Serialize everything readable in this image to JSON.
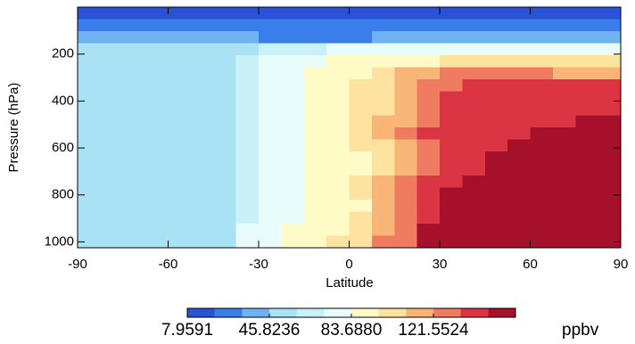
{
  "chart_data": {
    "type": "heatmap",
    "xlabel": "Latitude",
    "ylabel": "Pressure (hPa)",
    "x": [
      -86.25,
      -78.75,
      -71.25,
      -63.75,
      -56.25,
      -48.75,
      -41.25,
      -33.75,
      -26.25,
      -18.75,
      -11.25,
      -3.75,
      3.75,
      11.25,
      18.75,
      26.25,
      33.75,
      41.25,
      48.75,
      56.25,
      63.75,
      71.25,
      78.75,
      86.25
    ],
    "y": [
      25.625,
      76.875,
      128.125,
      179.375,
      230.625,
      281.875,
      333.125,
      384.375,
      435.625,
      486.875,
      538.125,
      589.375,
      640.625,
      691.875,
      743.125,
      794.375,
      845.625,
      896.875,
      948.125,
      999.375
    ],
    "values": [
      [
        14,
        14,
        14,
        14,
        14,
        14,
        14,
        14,
        14,
        14,
        14,
        14,
        14,
        14,
        14,
        14,
        14,
        14,
        14,
        14,
        14,
        14,
        14,
        14
      ],
      [
        27,
        27,
        27,
        27,
        27,
        27,
        27,
        27,
        27,
        27,
        27,
        27,
        27,
        27,
        27,
        27,
        27,
        27,
        27,
        27,
        27,
        27,
        27,
        27
      ],
      [
        40,
        40,
        40,
        40,
        40,
        40,
        40,
        40,
        27,
        27,
        27,
        27,
        27,
        40,
        40,
        40,
        40,
        40,
        40,
        40,
        40,
        40,
        40,
        40
      ],
      [
        52,
        52,
        52,
        52,
        52,
        52,
        52,
        52,
        65,
        65,
        65,
        77,
        77,
        77,
        77,
        77,
        77,
        77,
        77,
        77,
        77,
        77,
        77,
        77
      ],
      [
        52,
        52,
        52,
        52,
        52,
        52,
        52,
        65,
        77,
        77,
        77,
        90,
        90,
        90,
        90,
        90,
        103,
        103,
        103,
        103,
        103,
        103,
        103,
        103
      ],
      [
        52,
        52,
        52,
        52,
        52,
        52,
        52,
        65,
        77,
        77,
        90,
        90,
        90,
        103,
        115,
        115,
        128,
        128,
        128,
        128,
        128,
        115,
        115,
        115
      ],
      [
        52,
        52,
        52,
        52,
        52,
        52,
        52,
        65,
        77,
        77,
        90,
        90,
        103,
        103,
        115,
        128,
        128,
        140,
        140,
        140,
        140,
        140,
        140,
        140
      ],
      [
        52,
        52,
        52,
        52,
        52,
        52,
        52,
        65,
        77,
        77,
        90,
        90,
        103,
        103,
        115,
        128,
        140,
        140,
        140,
        140,
        140,
        140,
        140,
        140
      ],
      [
        52,
        52,
        52,
        52,
        52,
        52,
        52,
        65,
        77,
        77,
        90,
        90,
        103,
        103,
        115,
        128,
        140,
        140,
        140,
        140,
        140,
        140,
        140,
        140
      ],
      [
        52,
        52,
        52,
        52,
        52,
        52,
        52,
        65,
        77,
        77,
        90,
        90,
        103,
        115,
        115,
        128,
        140,
        140,
        140,
        140,
        140,
        140,
        153,
        153
      ],
      [
        52,
        52,
        52,
        52,
        52,
        52,
        52,
        65,
        77,
        77,
        90,
        90,
        103,
        115,
        128,
        140,
        140,
        140,
        140,
        140,
        153,
        153,
        153,
        153
      ],
      [
        52,
        52,
        52,
        52,
        52,
        52,
        52,
        65,
        77,
        77,
        90,
        90,
        103,
        103,
        115,
        128,
        140,
        140,
        140,
        153,
        153,
        153,
        153,
        153
      ],
      [
        52,
        52,
        52,
        52,
        52,
        52,
        52,
        65,
        77,
        77,
        90,
        90,
        90,
        103,
        115,
        128,
        140,
        140,
        153,
        153,
        153,
        153,
        153,
        153
      ],
      [
        52,
        52,
        52,
        52,
        52,
        52,
        52,
        65,
        77,
        77,
        90,
        90,
        90,
        103,
        115,
        128,
        140,
        140,
        153,
        153,
        153,
        153,
        153,
        153
      ],
      [
        52,
        52,
        52,
        52,
        52,
        52,
        52,
        65,
        77,
        77,
        90,
        90,
        103,
        115,
        128,
        140,
        140,
        153,
        153,
        153,
        153,
        153,
        153,
        153
      ],
      [
        52,
        52,
        52,
        52,
        52,
        52,
        52,
        65,
        77,
        77,
        90,
        90,
        103,
        115,
        128,
        140,
        153,
        153,
        153,
        153,
        153,
        153,
        153,
        153
      ],
      [
        52,
        52,
        52,
        52,
        52,
        52,
        52,
        65,
        77,
        77,
        90,
        90,
        90,
        115,
        128,
        140,
        153,
        153,
        153,
        153,
        153,
        153,
        153,
        153
      ],
      [
        52,
        52,
        52,
        52,
        52,
        52,
        52,
        65,
        77,
        77,
        90,
        90,
        103,
        115,
        128,
        140,
        153,
        153,
        153,
        153,
        153,
        153,
        153,
        153
      ],
      [
        52,
        52,
        52,
        52,
        52,
        52,
        52,
        77,
        77,
        90,
        90,
        90,
        103,
        115,
        128,
        153,
        153,
        153,
        153,
        153,
        153,
        153,
        153,
        153
      ],
      [
        52,
        52,
        52,
        52,
        52,
        52,
        52,
        77,
        77,
        90,
        90,
        103,
        103,
        128,
        128,
        153,
        153,
        153,
        153,
        153,
        153,
        153,
        153,
        153
      ]
    ],
    "xlim": [
      -90,
      90
    ],
    "ylim": [
      1025,
      0
    ],
    "xticks": [
      -90,
      -60,
      -30,
      0,
      30,
      60,
      90
    ],
    "yticks": [
      200,
      400,
      600,
      800,
      1000
    ],
    "colorbar": {
      "label": "ppbv",
      "clim": [
        7.9591,
        159.4171
      ],
      "colors": [
        "#2a52d8",
        "#3b7ee9",
        "#6fb2f2",
        "#a9e1f5",
        "#c8f1f8",
        "#e8fcfc",
        "#fffbc6",
        "#fde2a0",
        "#f8b577",
        "#ef7b61",
        "#db3544",
        "#a6102a"
      ],
      "ticks": [
        7.9591,
        45.8236,
        {
          "value": 83.688,
          "label": "83.6880"
        },
        121.5524
      ]
    }
  }
}
